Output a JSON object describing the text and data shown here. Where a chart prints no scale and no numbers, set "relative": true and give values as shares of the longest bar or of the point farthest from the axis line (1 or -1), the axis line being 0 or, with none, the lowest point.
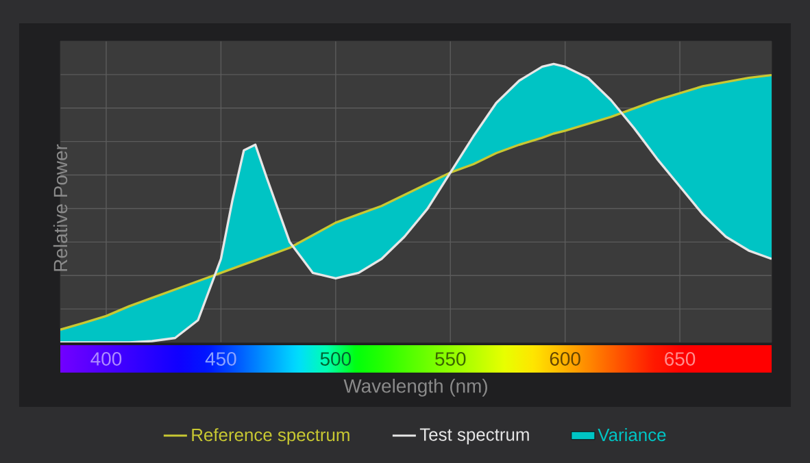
{
  "chart_data": {
    "type": "line",
    "xlabel": "Wavelength (nm)",
    "ylabel": "Relative Power",
    "xlim": [
      380,
      690
    ],
    "xticks": [
      400,
      450,
      500,
      550,
      600,
      650
    ],
    "relative": true,
    "grid": true,
    "legend": "bottom",
    "series": [
      {
        "name": "Reference spectrum",
        "color": "#c8c832",
        "x": [
          380,
          390,
          400,
          410,
          420,
          430,
          440,
          450,
          455,
          460,
          465,
          470,
          480,
          490,
          500,
          510,
          520,
          530,
          540,
          550,
          560,
          570,
          580,
          590,
          595,
          600,
          610,
          620,
          630,
          640,
          650,
          660,
          670,
          680,
          690
        ],
        "values": [
          0.046,
          0.07,
          0.095,
          0.13,
          0.16,
          0.19,
          0.22,
          0.25,
          0.265,
          0.28,
          0.295,
          0.31,
          0.34,
          0.385,
          0.43,
          0.46,
          0.49,
          0.53,
          0.57,
          0.61,
          0.64,
          0.68,
          0.71,
          0.735,
          0.75,
          0.76,
          0.785,
          0.81,
          0.84,
          0.87,
          0.895,
          0.92,
          0.935,
          0.95,
          0.96
        ]
      },
      {
        "name": "Test spectrum",
        "color": "#e6e6e6",
        "x": [
          380,
          390,
          400,
          410,
          420,
          430,
          440,
          450,
          455,
          460,
          465,
          470,
          480,
          490,
          500,
          510,
          520,
          530,
          540,
          550,
          560,
          570,
          580,
          590,
          595,
          600,
          610,
          620,
          630,
          640,
          650,
          660,
          670,
          680,
          690
        ],
        "values": [
          0,
          0,
          0,
          0,
          0.005,
          0.016,
          0.08,
          0.3,
          0.51,
          0.69,
          0.71,
          0.59,
          0.36,
          0.25,
          0.23,
          0.25,
          0.3,
          0.38,
          0.48,
          0.61,
          0.74,
          0.86,
          0.94,
          0.99,
          1.0,
          0.99,
          0.95,
          0.87,
          0.77,
          0.66,
          0.56,
          0.46,
          0.38,
          0.33,
          0.3
        ]
      },
      {
        "name": "Variance",
        "type": "area",
        "color": "#00c4c4"
      }
    ]
  }
}
